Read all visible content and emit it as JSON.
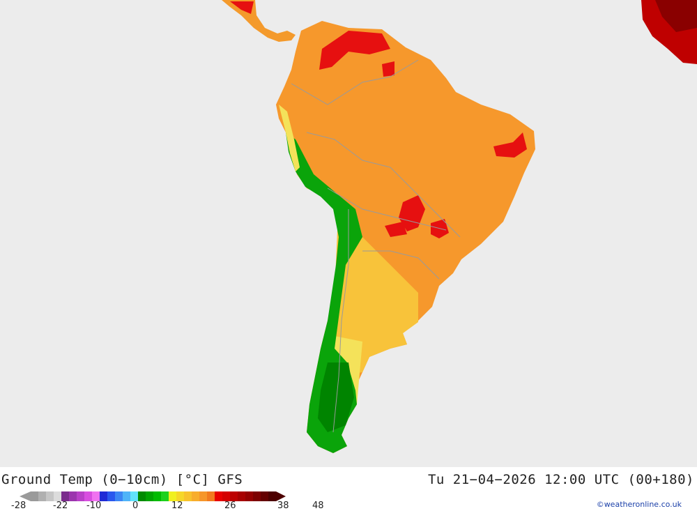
{
  "title": "Ground Temp (0−10cm) [°C] GFS",
  "timestamp": "Tu 21−04−2026 12:00 UTC (00+180)",
  "credit": "©weatheronline.co.uk",
  "colors": {
    "ocean": "#ececec",
    "border": "#9a9a9a",
    "scale": [
      "#9a9a9a",
      "#b0b0b0",
      "#c6c6c6",
      "#dcdcdc",
      "#7a2b8c",
      "#9b35ad",
      "#b940c8",
      "#d84ee0",
      "#f072f0",
      "#1f2ad6",
      "#2a57ee",
      "#3c86f4",
      "#4fb4f8",
      "#61e2fb",
      "#008a00",
      "#00a300",
      "#00bb00",
      "#1dd11d",
      "#f0f020",
      "#f6d728",
      "#f8c22c",
      "#f8ad2c",
      "#f6962a",
      "#f27a1f",
      "#e80000",
      "#d40000",
      "#bd0000",
      "#a80000",
      "#940000",
      "#7c0000",
      "#640000",
      "#4d0000"
    ]
  },
  "legend": {
    "ticks": [
      "-28",
      "-22",
      "-10",
      "0",
      "12",
      "26",
      "38",
      "48"
    ]
  }
}
